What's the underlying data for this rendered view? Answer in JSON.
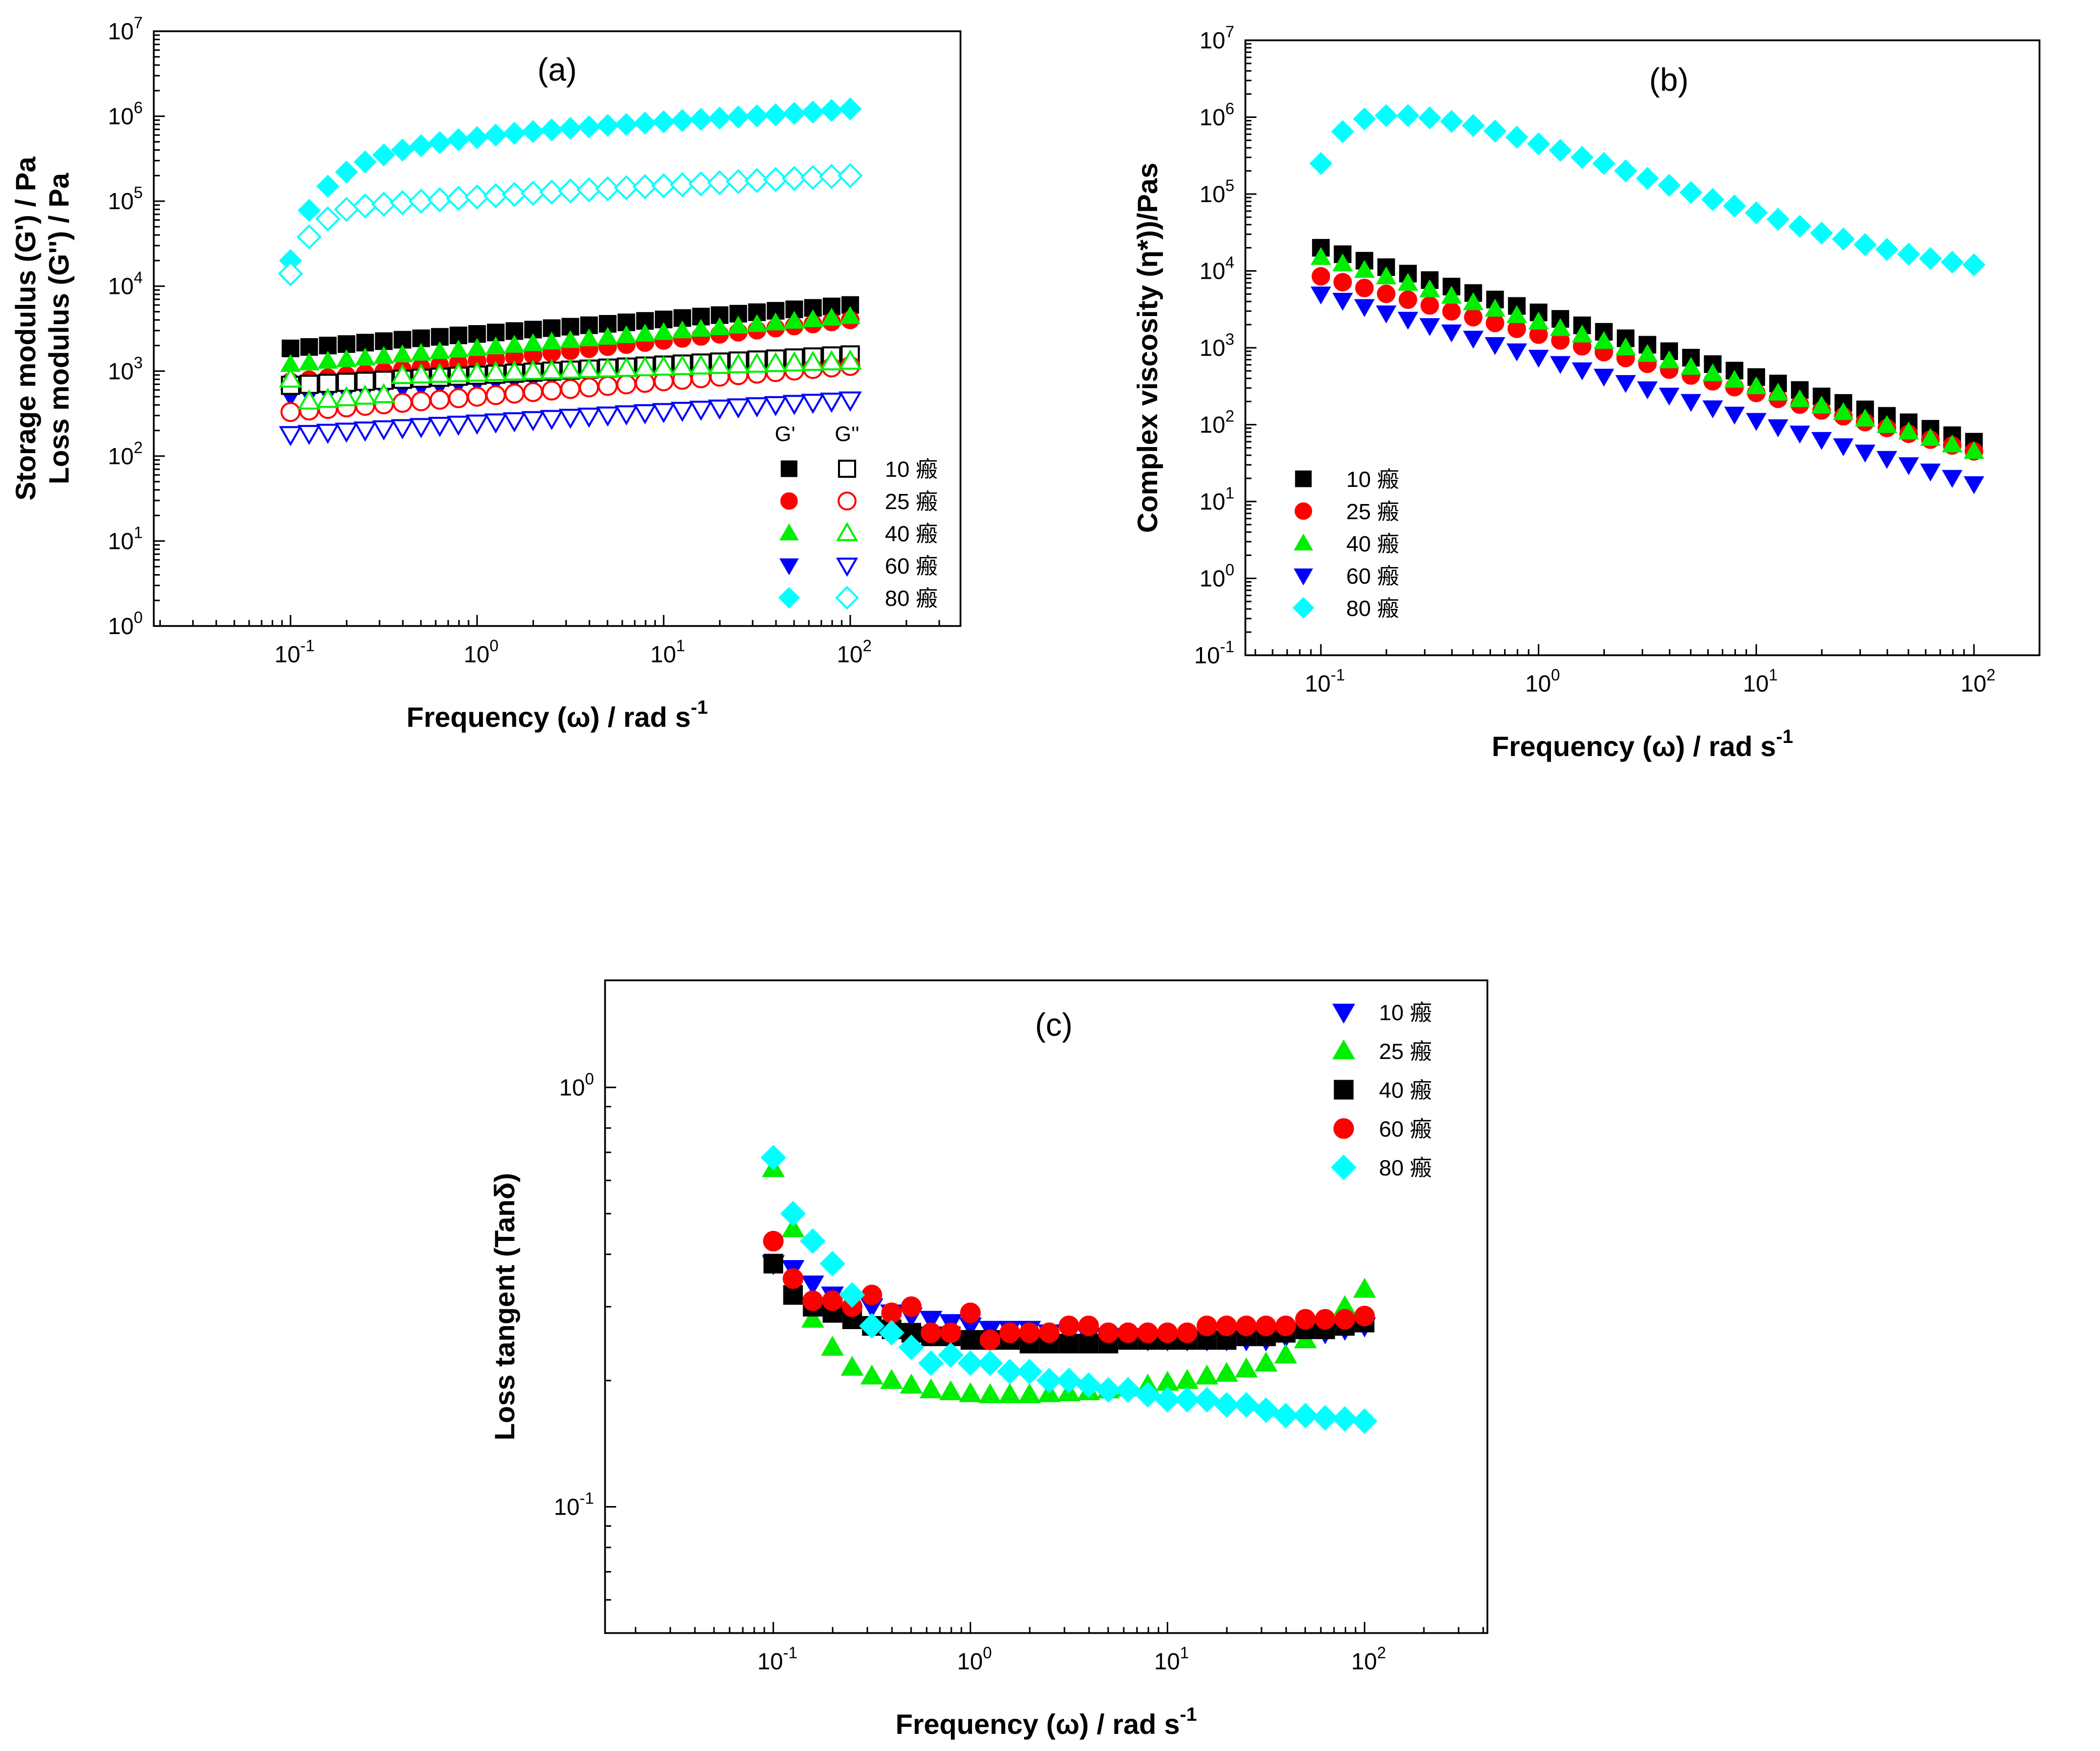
{
  "colors": {
    "10C": "#000000",
    "25C": "#ff0000",
    "40C": "#00ee00",
    "60C": "#0000ff",
    "80C": "#00ffff"
  },
  "chart_data": [
    {
      "id": "a",
      "type": "scatter",
      "panel_label": "(a)",
      "xlabel_main": "Frequency (ω) / rad s",
      "xlabel_sup": "-1",
      "ylabel_lines": [
        "Storage modulus (G') / Pa",
        "Loss modulus (G'') / Pa"
      ],
      "x_scale": "log",
      "y_scale": "log",
      "xlim": [
        0.0185,
        390
      ],
      "ylim": [
        1,
        10000000
      ],
      "x_ticks": [
        {
          "base": "10",
          "exp": "-1"
        },
        {
          "base": "10",
          "exp": "0"
        },
        {
          "base": "10",
          "exp": "1"
        },
        {
          "base": "10",
          "exp": "2"
        }
      ],
      "y_ticks": [
        {
          "base": "10",
          "exp": "0"
        },
        {
          "base": "10",
          "exp": "1"
        },
        {
          "base": "10",
          "exp": "2"
        },
        {
          "base": "10",
          "exp": "3"
        },
        {
          "base": "10",
          "exp": "4"
        },
        {
          "base": "10",
          "exp": "5"
        },
        {
          "base": "10",
          "exp": "6"
        },
        {
          "base": "10",
          "exp": "7"
        }
      ],
      "legend": {
        "position": "bottom-right",
        "headers": [
          "G'",
          "G''"
        ],
        "entries": [
          "10 瘢",
          "25 瘢",
          "40 瘢",
          "60 瘢",
          "80 瘢"
        ]
      },
      "x_points": 31,
      "x_range": [
        0.1,
        100
      ],
      "series": [
        {
          "name": "10 瘢 G'",
          "color_key": "10C",
          "marker": "square",
          "filled": true,
          "start": 1850,
          "end": 6000
        },
        {
          "name": "25 瘢 G'",
          "color_key": "25C",
          "marker": "circle",
          "filled": true,
          "start": 750,
          "end": 4000
        },
        {
          "name": "40 瘢 G'",
          "color_key": "40C",
          "marker": "triangle-up",
          "filled": true,
          "start": 1200,
          "end": 4400
        },
        {
          "name": "60 瘢 G'",
          "color_key": "60C",
          "marker": "triangle-down",
          "filled": true,
          "start": 500,
          "end": 1500
        },
        {
          "name": "80 瘢 G'",
          "color_key": "80C",
          "marker": "diamond",
          "filled": true,
          "values": [
            20000,
            78000,
            150000,
            220000,
            290000,
            350000,
            400000,
            450000,
            490000,
            530000,
            560000,
            600000,
            630000,
            660000,
            690000,
            720000,
            750000,
            780000,
            800000,
            830000,
            860000,
            890000,
            920000,
            950000,
            980000,
            1010000,
            1040000,
            1080000,
            1120000,
            1170000,
            1220000
          ]
        },
        {
          "name": "10 瘢 G''",
          "color_key": "10C",
          "marker": "square",
          "filled": false,
          "start": 680,
          "end": 1550
        },
        {
          "name": "25 瘢 G''",
          "color_key": "25C",
          "marker": "circle",
          "filled": false,
          "start": 330,
          "end": 1150
        },
        {
          "name": "40 瘢 G''",
          "color_key": "40C",
          "marker": "triangle-up",
          "filled": false,
          "start": 800,
          "end": 1300,
          "dip": 420
        },
        {
          "name": "60 瘢 G''",
          "color_key": "60C",
          "marker": "triangle-down",
          "filled": false,
          "start": 180,
          "end": 460
        },
        {
          "name": "80 瘢 G''",
          "color_key": "80C",
          "marker": "diamond",
          "filled": false,
          "values": [
            14000,
            38000,
            62000,
            80000,
            88000,
            92000,
            96000,
            100000,
            104000,
            108000,
            112000,
            116000,
            120000,
            124000,
            128000,
            132000,
            136000,
            140000,
            144000,
            148000,
            152000,
            156000,
            160000,
            165000,
            170000,
            175000,
            180000,
            185000,
            190000,
            195000,
            200000
          ]
        }
      ]
    },
    {
      "id": "b",
      "type": "scatter",
      "panel_label": "(b)",
      "xlabel_main": "Frequency (ω) / rad s",
      "xlabel_sup": "-1",
      "ylabel_lines": [
        "Complex viscosity (η*))/Pas"
      ],
      "x_scale": "log",
      "y_scale": "log",
      "xlim": [
        0.045,
        200
      ],
      "ylim": [
        0.1,
        10000000
      ],
      "x_ticks": [
        {
          "base": "10",
          "exp": "-1"
        },
        {
          "base": "10",
          "exp": "0"
        },
        {
          "base": "10",
          "exp": "1"
        },
        {
          "base": "10",
          "exp": "2"
        }
      ],
      "y_ticks": [
        {
          "base": "10",
          "exp": "-1"
        },
        {
          "base": "10",
          "exp": "0"
        },
        {
          "base": "10",
          "exp": "1"
        },
        {
          "base": "10",
          "exp": "2"
        },
        {
          "base": "10",
          "exp": "3"
        },
        {
          "base": "10",
          "exp": "4"
        },
        {
          "base": "10",
          "exp": "5"
        },
        {
          "base": "10",
          "exp": "6"
        },
        {
          "base": "10",
          "exp": "7"
        }
      ],
      "legend": {
        "position": "bottom-left",
        "entries": [
          "10 瘢",
          "25 瘢",
          "40 瘢",
          "60 瘢",
          "80 瘢"
        ]
      },
      "x_points": 31,
      "x_range": [
        0.1,
        100
      ],
      "series": [
        {
          "name": "10 瘢",
          "color_key": "10C",
          "marker": "square",
          "filled": true,
          "start": 20000,
          "end": 60
        },
        {
          "name": "25 瘢",
          "color_key": "25C",
          "marker": "circle",
          "filled": true,
          "start": 8500,
          "end": 45
        },
        {
          "name": "40 瘢",
          "color_key": "40C",
          "marker": "triangle-up",
          "filled": true,
          "start": 15000,
          "end": 45
        },
        {
          "name": "60 瘢",
          "color_key": "60C",
          "marker": "triangle-down",
          "filled": true,
          "start": 5000,
          "end": 17
        },
        {
          "name": "80 瘢",
          "color_key": "80C",
          "marker": "diamond",
          "filled": true,
          "values": [
            250000,
            650000,
            950000,
            1050000,
            1050000,
            980000,
            880000,
            780000,
            660000,
            550000,
            450000,
            370000,
            300000,
            250000,
            200000,
            160000,
            130000,
            105000,
            85000,
            70000,
            57000,
            47000,
            38000,
            31000,
            26000,
            22000,
            19000,
            16500,
            14500,
            13000,
            12000
          ]
        }
      ]
    },
    {
      "id": "c",
      "type": "scatter",
      "panel_label": "(c)",
      "xlabel_main": "Frequency (ω) / rad s",
      "xlabel_sup": "-1",
      "ylabel_lines": [
        "Loss tangent (Tanδ)"
      ],
      "x_scale": "log",
      "y_scale": "log",
      "xlim": [
        0.014,
        420
      ],
      "ylim": [
        0.05,
        1.8
      ],
      "x_ticks": [
        {
          "base": "10",
          "exp": "-1"
        },
        {
          "base": "10",
          "exp": "0"
        },
        {
          "base": "10",
          "exp": "1"
        },
        {
          "base": "10",
          "exp": "2"
        }
      ],
      "y_ticks": [
        {
          "base": "10",
          "exp": "-1",
          "value": 0.1
        },
        {
          "base": "10",
          "exp": "0",
          "value": 1
        }
      ],
      "legend": {
        "position": "top-right",
        "entries": [
          "10 瘢",
          "25 瘢",
          "40 瘢",
          "60 瘢",
          "80 瘢"
        ]
      },
      "x_points": 31,
      "x_range": [
        0.1,
        100
      ],
      "series": [
        {
          "name": "10 瘢",
          "color_key": "60C",
          "marker": "triangle-down",
          "filled": true,
          "values": [
            0.38,
            0.37,
            0.34,
            0.32,
            0.31,
            0.3,
            0.29,
            0.285,
            0.28,
            0.275,
            0.27,
            0.265,
            0.265,
            0.265,
            0.26,
            0.26,
            0.255,
            0.255,
            0.255,
            0.25,
            0.25,
            0.25,
            0.25,
            0.25,
            0.25,
            0.25,
            0.255,
            0.255,
            0.26,
            0.265,
            0.27
          ]
        },
        {
          "name": "25 瘢",
          "color_key": "40C",
          "marker": "triangle-up",
          "filled": true,
          "values": [
            0.64,
            0.46,
            0.28,
            0.24,
            0.215,
            0.205,
            0.2,
            0.195,
            0.19,
            0.188,
            0.186,
            0.185,
            0.185,
            0.185,
            0.186,
            0.187,
            0.188,
            0.19,
            0.192,
            0.195,
            0.198,
            0.2,
            0.205,
            0.208,
            0.213,
            0.22,
            0.23,
            0.25,
            0.27,
            0.3,
            0.33
          ]
        },
        {
          "name": "40 瘢",
          "color_key": "10C",
          "marker": "square",
          "filled": true,
          "values": [
            0.38,
            0.32,
            0.3,
            0.29,
            0.28,
            0.27,
            0.265,
            0.26,
            0.255,
            0.255,
            0.25,
            0.25,
            0.25,
            0.245,
            0.245,
            0.245,
            0.245,
            0.245,
            0.25,
            0.25,
            0.25,
            0.25,
            0.25,
            0.25,
            0.255,
            0.255,
            0.26,
            0.265,
            0.265,
            0.27,
            0.275
          ]
        },
        {
          "name": "60 瘢",
          "color_key": "25C",
          "marker": "circle",
          "filled": true,
          "values": [
            0.43,
            0.35,
            0.31,
            0.31,
            0.3,
            0.32,
            0.29,
            0.3,
            0.26,
            0.26,
            0.29,
            0.25,
            0.26,
            0.26,
            0.26,
            0.27,
            0.27,
            0.26,
            0.26,
            0.26,
            0.26,
            0.26,
            0.27,
            0.27,
            0.27,
            0.27,
            0.27,
            0.28,
            0.28,
            0.28,
            0.285
          ]
        },
        {
          "name": "80 瘢",
          "color_key": "80C",
          "marker": "diamond",
          "filled": true,
          "values": [
            0.68,
            0.5,
            0.43,
            0.38,
            0.32,
            0.27,
            0.26,
            0.24,
            0.22,
            0.23,
            0.22,
            0.22,
            0.21,
            0.21,
            0.2,
            0.2,
            0.195,
            0.19,
            0.19,
            0.185,
            0.18,
            0.18,
            0.18,
            0.175,
            0.175,
            0.17,
            0.165,
            0.165,
            0.163,
            0.162,
            0.16
          ]
        }
      ]
    }
  ]
}
